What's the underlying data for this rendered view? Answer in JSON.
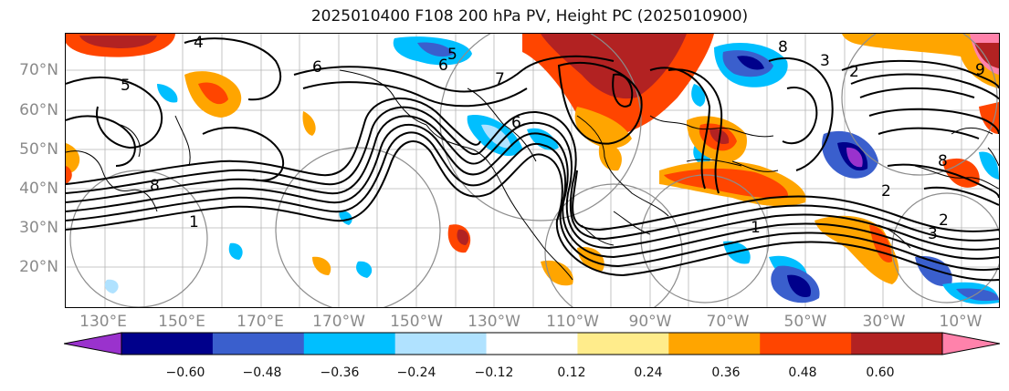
{
  "title": "2025010400 F108 200 hPa PV, Height PC (2025010900)",
  "lat_labels": [
    "70°N",
    "60°N",
    "50°N",
    "40°N",
    "30°N",
    "20°N"
  ],
  "lon_labels": [
    "130°E",
    "150°E",
    "170°E",
    "170°W",
    "150°W",
    "130°W",
    "110°W",
    "90°W",
    "70°W",
    "50°W",
    "30°W",
    "10°W"
  ],
  "colorbar": {
    "colors": [
      "#9a32cd",
      "#00008b",
      "#3a5fcd",
      "#00bfff",
      "#b0e2ff",
      "#ffffff",
      "#ffec8b",
      "#ffa500",
      "#ff4500",
      "#b22222",
      "#ff82ab"
    ],
    "ticks": [
      "−0.60",
      "−0.48",
      "−0.36",
      "−0.24",
      "−0.12",
      "0.12",
      "0.24",
      "0.36",
      "0.48",
      "0.60"
    ]
  },
  "contour_labels": [
    "4",
    "6",
    "5",
    "7",
    "6",
    "5",
    "8",
    "9",
    "3",
    "2",
    "1",
    "2",
    "3",
    "2",
    "1",
    "8",
    "8",
    "6"
  ]
}
